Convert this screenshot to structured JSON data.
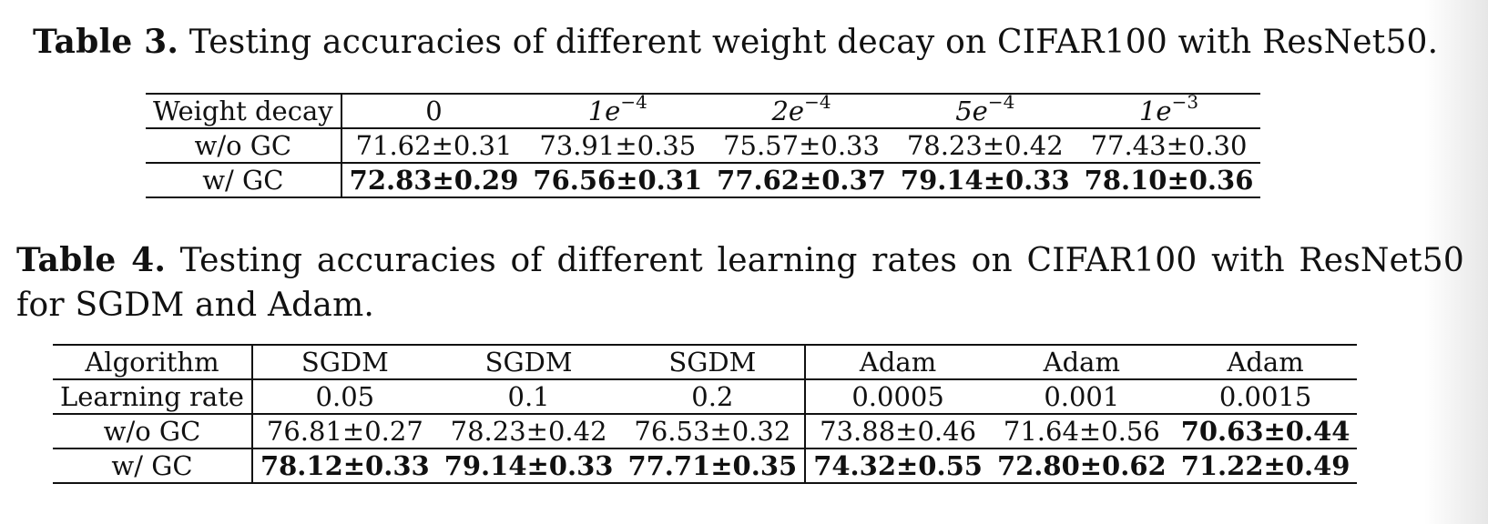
{
  "table3": {
    "caption_label": "Table 3.",
    "caption_text": "Testing accuracies of different weight decay on CIFAR100 with ResNet50.",
    "header_label": "Weight decay",
    "columns": [
      {
        "base": "",
        "exp": "",
        "plain": "0"
      },
      {
        "base": "1e",
        "exp": "−4"
      },
      {
        "base": "2e",
        "exp": "−4"
      },
      {
        "base": "5e",
        "exp": "−4"
      },
      {
        "base": "1e",
        "exp": "−3"
      }
    ],
    "rows": [
      {
        "label": "w/o GC",
        "values": [
          "71.62±0.31",
          "73.91±0.35",
          "75.57±0.33",
          "78.23±0.42",
          "77.43±0.30"
        ],
        "bold": [
          false,
          false,
          false,
          false,
          false
        ]
      },
      {
        "label": "w/ GC",
        "values": [
          "72.83±0.29",
          "76.56±0.31",
          "77.62±0.37",
          "79.14±0.33",
          "78.10±0.36"
        ],
        "bold": [
          true,
          true,
          true,
          true,
          true
        ]
      }
    ]
  },
  "table4": {
    "caption_label": "Table 4.",
    "caption_text": "Testing accuracies of different learning rates on CIFAR100 with ResNet50 for SGDM and Adam.",
    "rows": [
      {
        "label": "Algorithm",
        "values": [
          "SGDM",
          "SGDM",
          "SGDM",
          "Adam",
          "Adam",
          "Adam"
        ],
        "bold": [
          false,
          false,
          false,
          false,
          false,
          false
        ]
      },
      {
        "label": "Learning rate",
        "values": [
          "0.05",
          "0.1",
          "0.2",
          "0.0005",
          "0.001",
          "0.0015"
        ],
        "bold": [
          false,
          false,
          false,
          false,
          false,
          false
        ]
      },
      {
        "label": "w/o GC",
        "values": [
          "76.81±0.27",
          "78.23±0.42",
          "76.53±0.32",
          "73.88±0.46",
          "71.64±0.56",
          "70.63±0.44"
        ],
        "bold": [
          false,
          false,
          false,
          false,
          false,
          true
        ]
      },
      {
        "label": "w/ GC",
        "values": [
          "78.12±0.33",
          "79.14±0.33",
          "77.71±0.35",
          "74.32±0.55",
          "72.80±0.62",
          "71.22±0.49"
        ],
        "bold": [
          true,
          true,
          true,
          true,
          true,
          true
        ]
      }
    ]
  }
}
